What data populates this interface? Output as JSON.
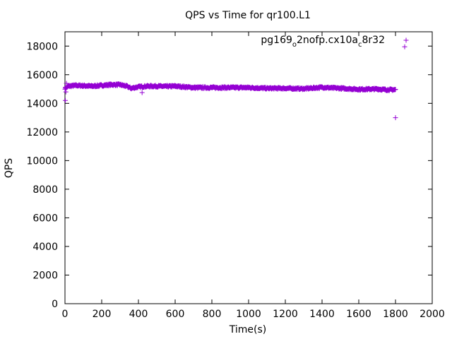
{
  "chart_data": {
    "type": "scatter",
    "title": "QPS vs Time for qr100.L1",
    "xlabel": "Time(s)",
    "ylabel": "QPS",
    "xlim": [
      0,
      2000
    ],
    "ylim": [
      0,
      19000
    ],
    "xticks": [
      0,
      200,
      400,
      600,
      800,
      1000,
      1200,
      1400,
      1600,
      1800,
      2000
    ],
    "yticks": [
      0,
      2000,
      4000,
      6000,
      8000,
      10000,
      12000,
      14000,
      16000,
      18000
    ],
    "grid": false,
    "legend_position": "top-right",
    "marker": "+",
    "series": [
      {
        "name_parts": [
          "pg169",
          "o",
          "2nofp.cx10a",
          "c",
          "8r32"
        ],
        "color": "#9400d3",
        "trend": [
          [
            0,
            15050
          ],
          [
            20,
            15200
          ],
          [
            60,
            15250
          ],
          [
            100,
            15230
          ],
          [
            150,
            15200
          ],
          [
            200,
            15250
          ],
          [
            250,
            15300
          ],
          [
            300,
            15300
          ],
          [
            340,
            15180
          ],
          [
            360,
            15050
          ],
          [
            400,
            15150
          ],
          [
            450,
            15200
          ],
          [
            500,
            15200
          ],
          [
            550,
            15180
          ],
          [
            600,
            15200
          ],
          [
            650,
            15150
          ],
          [
            700,
            15100
          ],
          [
            800,
            15100
          ],
          [
            900,
            15100
          ],
          [
            1000,
            15100
          ],
          [
            1100,
            15050
          ],
          [
            1200,
            15050
          ],
          [
            1300,
            15020
          ],
          [
            1400,
            15120
          ],
          [
            1450,
            15080
          ],
          [
            1500,
            15050
          ],
          [
            1600,
            14980
          ],
          [
            1700,
            15000
          ],
          [
            1750,
            14950
          ],
          [
            1800,
            14950
          ]
        ],
        "spread": 60,
        "step": 2,
        "outliers": [
          [
            2,
            14200
          ],
          [
            5,
            14800
          ],
          [
            8,
            15400
          ],
          [
            420,
            14750
          ],
          [
            1800,
            13000
          ],
          [
            1850,
            17950
          ]
        ]
      }
    ]
  }
}
